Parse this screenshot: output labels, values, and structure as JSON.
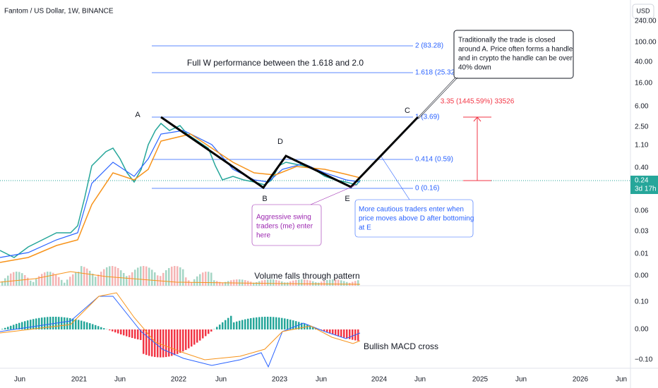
{
  "header": {
    "symbol": "Fantom / US Dollar, 1W, BINANCE",
    "currency": "USD"
  },
  "price_axis": {
    "labels": [
      "240.00",
      "100.00",
      "40.00",
      "16.00",
      "6.00",
      "2.50",
      "1.10",
      "0.40",
      "0.06",
      "0.03",
      "0.01",
      "0.00"
    ],
    "current": "0.24",
    "countdown": "3d 17h"
  },
  "macd_axis": {
    "labels": [
      "0.10",
      "0.00",
      "−0.10"
    ]
  },
  "time_axis": {
    "labels": [
      "Jun",
      "2021",
      "Jun",
      "2022",
      "Jun",
      "2023",
      "Jun",
      "2024",
      "Jun",
      "2025",
      "Jun",
      "2026",
      "Jun"
    ]
  },
  "fib_levels": [
    "2 (83.28)",
    "1.618 (25.32)",
    "1 (3.69)",
    "0.414 (0.59)",
    "0 (0.16)"
  ],
  "points": [
    "A",
    "B",
    "C",
    "D",
    "E"
  ],
  "annotations": {
    "headline": "Full W performance between the 1.618 and 2.0",
    "callout": [
      "Traditionally the trade is closed",
      "around A.  Price often forms a handle",
      "and in crypto the handle can be over",
      "40% down"
    ],
    "measure": "3.35 (1445.59%) 33526",
    "aggressive": [
      "Aggressive swing",
      "traders (me) enter",
      "here"
    ],
    "cautious": [
      "More cautious traders enter when",
      "price moves above D after bottoming",
      "at E"
    ],
    "volume": "Volume falls through pattern",
    "macd": "Bullish MACD cross"
  }
}
